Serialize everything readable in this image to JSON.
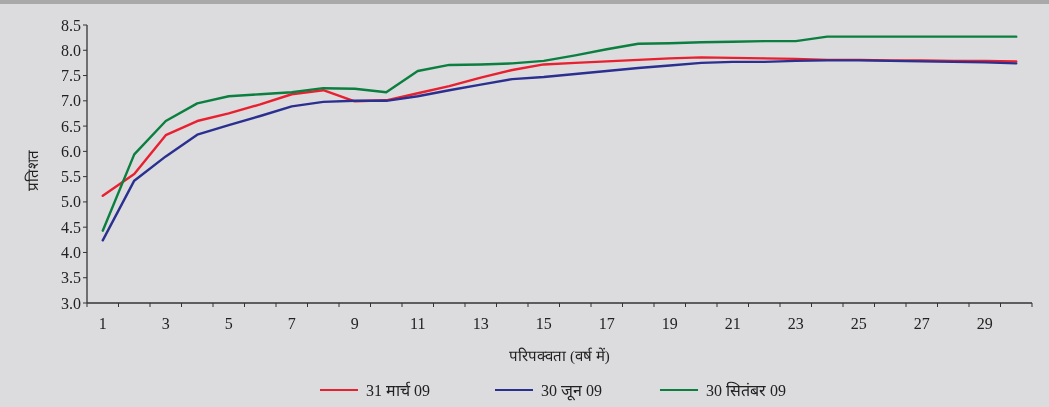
{
  "chart_data": {
    "type": "line",
    "xlabel": "परिपक्वता (वर्ष में)",
    "ylabel": "प्रतिशत",
    "x": [
      1,
      2,
      3,
      4,
      5,
      6,
      7,
      8,
      9,
      10,
      11,
      12,
      13,
      14,
      15,
      16,
      17,
      18,
      19,
      20,
      21,
      22,
      23,
      24,
      25,
      26,
      27,
      28,
      29,
      30
    ],
    "xlim": [
      0.5,
      30.5
    ],
    "xticks": [
      1,
      3,
      5,
      7,
      9,
      11,
      13,
      15,
      17,
      19,
      21,
      23,
      25,
      27,
      29,
      {
        "value": 0.5,
        "label": null
      },
      {
        "value": 1.5,
        "label": null
      },
      {
        "value": 2.5,
        "label": null
      },
      {
        "value": 3.5,
        "label": null
      },
      {
        "value": 4.5,
        "label": null
      },
      {
        "value": 5.5,
        "label": null
      },
      {
        "value": 6.5,
        "label": null
      },
      {
        "value": 7.5,
        "label": null
      },
      {
        "value": 8.5,
        "label": null
      },
      {
        "value": 9.5,
        "label": null
      },
      {
        "value": 10.5,
        "label": null
      },
      {
        "value": 11.5,
        "label": null
      },
      {
        "value": 12.5,
        "label": null
      },
      {
        "value": 13.5,
        "label": null
      },
      {
        "value": 14.5,
        "label": null
      },
      {
        "value": 15.5,
        "label": null
      },
      {
        "value": 16.5,
        "label": null
      },
      {
        "value": 17.5,
        "label": null
      },
      {
        "value": 18.5,
        "label": null
      },
      {
        "value": 19.5,
        "label": null
      },
      {
        "value": 20.5,
        "label": null
      },
      {
        "value": 21.5,
        "label": null
      },
      {
        "value": 22.5,
        "label": null
      },
      {
        "value": 23.5,
        "label": null
      },
      {
        "value": 24.5,
        "label": null
      },
      {
        "value": 25.5,
        "label": null
      },
      {
        "value": 26.5,
        "label": null
      },
      {
        "value": 27.5,
        "label": null
      },
      {
        "value": 28.5,
        "label": null
      },
      {
        "value": 29.5,
        "label": null
      },
      {
        "value": 30.5,
        "label": null
      }
    ],
    "ylim": [
      3,
      8.5
    ],
    "yticks": [
      {
        "value": 3,
        "label": "3.0"
      },
      3.5,
      {
        "value": 4,
        "label": "4.0"
      },
      4.5,
      {
        "value": 5,
        "label": "5.0"
      },
      5.5,
      {
        "value": 6,
        "label": "6.0"
      },
      6.5,
      {
        "value": 7,
        "label": "7.0"
      },
      7.5,
      {
        "value": 8,
        "label": "8.0"
      },
      8.5
    ],
    "legend": "bottom",
    "series": [
      {
        "name": "31 मार्च 09",
        "color": "#e8202f",
        "values": [
          5.12,
          5.55,
          6.32,
          6.6,
          6.75,
          6.93,
          7.13,
          7.21,
          6.99,
          7.01,
          7.15,
          7.29,
          7.46,
          7.61,
          7.72,
          7.75,
          7.78,
          7.81,
          7.84,
          7.86,
          7.85,
          7.84,
          7.83,
          7.81,
          7.81,
          7.8,
          7.8,
          7.79,
          7.79,
          7.78
        ]
      },
      {
        "name": "30 जून 09",
        "color": "#2b2f8f",
        "values": [
          4.24,
          5.42,
          5.9,
          6.33,
          6.52,
          6.7,
          6.89,
          6.98,
          7.0,
          7.0,
          7.09,
          7.21,
          7.32,
          7.43,
          7.47,
          7.53,
          7.59,
          7.65,
          7.7,
          7.75,
          7.77,
          7.77,
          7.79,
          7.8,
          7.8,
          7.79,
          7.78,
          7.77,
          7.76,
          7.74
        ]
      },
      {
        "name": "30 सितंबर 09",
        "color": "#0a7f3f",
        "values": [
          4.43,
          5.94,
          6.6,
          6.95,
          7.09,
          7.13,
          7.17,
          7.25,
          7.24,
          7.17,
          7.59,
          7.71,
          7.72,
          7.74,
          7.79,
          7.9,
          8.02,
          8.13,
          8.14,
          8.16,
          8.17,
          8.18,
          8.18,
          8.27,
          8.27,
          8.27,
          8.27,
          8.27,
          8.27,
          8.27
        ]
      }
    ]
  }
}
